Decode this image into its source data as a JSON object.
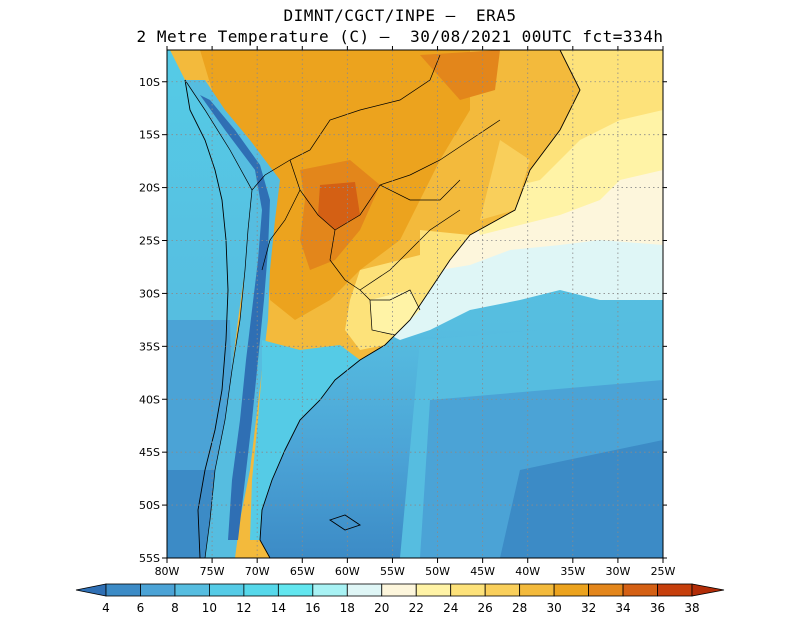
{
  "header": {
    "line1": "DIMNT/CGCT/INPE –  ERA5",
    "line2": "2 Metre Temperature (C) –  30/08/2021 00UTC fct=334h"
  },
  "map": {
    "lon_range": [
      -80,
      -25
    ],
    "lat_range": [
      -55,
      -7
    ],
    "lon_ticks": [
      {
        "value": -80,
        "label": "80W"
      },
      {
        "value": -75,
        "label": "75W"
      },
      {
        "value": -70,
        "label": "70W"
      },
      {
        "value": -65,
        "label": "65W"
      },
      {
        "value": -60,
        "label": "60W"
      },
      {
        "value": -55,
        "label": "55W"
      },
      {
        "value": -50,
        "label": "50W"
      },
      {
        "value": -45,
        "label": "45W"
      },
      {
        "value": -40,
        "label": "40W"
      },
      {
        "value": -35,
        "label": "35W"
      },
      {
        "value": -30,
        "label": "30W"
      },
      {
        "value": -25,
        "label": "25W"
      }
    ],
    "lat_ticks": [
      {
        "value": -10,
        "label": "10S"
      },
      {
        "value": -15,
        "label": "15S"
      },
      {
        "value": -20,
        "label": "20S"
      },
      {
        "value": -25,
        "label": "25S"
      },
      {
        "value": -30,
        "label": "30S"
      },
      {
        "value": -35,
        "label": "35S"
      },
      {
        "value": -40,
        "label": "40S"
      },
      {
        "value": -45,
        "label": "45S"
      },
      {
        "value": -50,
        "label": "50S"
      },
      {
        "value": -55,
        "label": "55S"
      }
    ],
    "gridlines": "dotted"
  },
  "colorbar": {
    "labels": [
      "4",
      "6",
      "8",
      "10",
      "12",
      "14",
      "16",
      "18",
      "20",
      "22",
      "24",
      "26",
      "28",
      "30",
      "32",
      "34",
      "36",
      "38"
    ],
    "colors": [
      "#2f6fb4",
      "#3c8bc6",
      "#4ba3d6",
      "#56bde0",
      "#55cbe6",
      "#56d8ea",
      "#62e6ef",
      "#a8f2f4",
      "#dff6f6",
      "#fdf6dc",
      "#fff3a6",
      "#fde27a",
      "#f9cf5b",
      "#f3ba3c",
      "#eca31e",
      "#e3861b",
      "#d46014",
      "#c63f0c",
      "#b22d08"
    ]
  }
}
